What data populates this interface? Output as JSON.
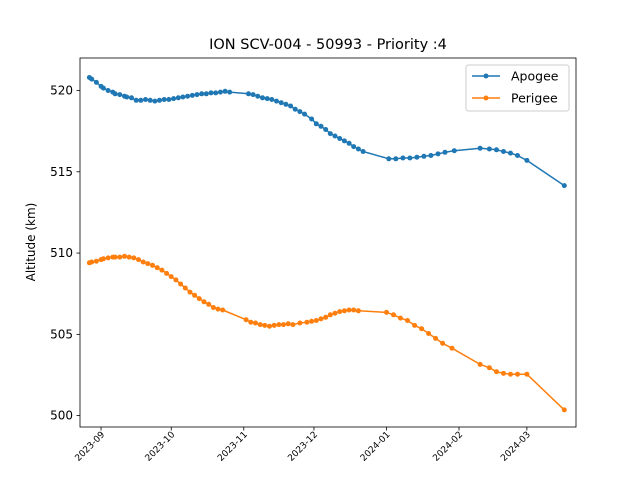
{
  "chart_data": {
    "type": "line",
    "title": "ION SCV-004 - 50993 - Priority :4",
    "xlabel": "",
    "ylabel": "Altitude (km)",
    "xlim": [
      "2023-08-23",
      "2024-03-22"
    ],
    "ylim": [
      499.3,
      522.0
    ],
    "x_ticks": [
      "2023-09",
      "2023-10",
      "2023-11",
      "2023-12",
      "2024-01",
      "2024-02",
      "2024-03"
    ],
    "y_ticks": [
      500,
      505,
      510,
      515,
      520
    ],
    "grid": false,
    "legend_position": "top-right",
    "series": [
      {
        "name": "Apogee",
        "color": "#1f77b4",
        "marker": "circle",
        "points": [
          [
            "2023-08-27",
            520.8
          ],
          [
            "2023-08-28",
            520.7
          ],
          [
            "2023-08-30",
            520.5
          ],
          [
            "2023-09-01",
            520.25
          ],
          [
            "2023-09-02",
            520.15
          ],
          [
            "2023-09-04",
            520.0
          ],
          [
            "2023-09-06",
            519.9
          ],
          [
            "2023-09-07",
            519.8
          ],
          [
            "2023-09-09",
            519.75
          ],
          [
            "2023-09-11",
            519.65
          ],
          [
            "2023-09-12",
            519.6
          ],
          [
            "2023-09-14",
            519.55
          ],
          [
            "2023-09-16",
            519.4
          ],
          [
            "2023-09-18",
            519.4
          ],
          [
            "2023-09-20",
            519.45
          ],
          [
            "2023-09-22",
            519.4
          ],
          [
            "2023-09-24",
            519.35
          ],
          [
            "2023-09-26",
            519.4
          ],
          [
            "2023-09-28",
            519.45
          ],
          [
            "2023-09-30",
            519.45
          ],
          [
            "2023-10-02",
            519.5
          ],
          [
            "2023-10-04",
            519.55
          ],
          [
            "2023-10-06",
            519.6
          ],
          [
            "2023-10-08",
            519.65
          ],
          [
            "2023-10-10",
            519.7
          ],
          [
            "2023-10-12",
            519.75
          ],
          [
            "2023-10-14",
            519.8
          ],
          [
            "2023-10-16",
            519.8
          ],
          [
            "2023-10-18",
            519.85
          ],
          [
            "2023-10-20",
            519.85
          ],
          [
            "2023-10-22",
            519.9
          ],
          [
            "2023-10-24",
            519.95
          ],
          [
            "2023-10-26",
            519.9
          ],
          [
            "2023-11-03",
            519.8
          ],
          [
            "2023-11-05",
            519.75
          ],
          [
            "2023-11-07",
            519.65
          ],
          [
            "2023-11-09",
            519.55
          ],
          [
            "2023-11-11",
            519.5
          ],
          [
            "2023-11-13",
            519.45
          ],
          [
            "2023-11-15",
            519.35
          ],
          [
            "2023-11-17",
            519.25
          ],
          [
            "2023-11-19",
            519.15
          ],
          [
            "2023-11-21",
            519.05
          ],
          [
            "2023-11-23",
            518.85
          ],
          [
            "2023-11-25",
            518.7
          ],
          [
            "2023-11-27",
            518.55
          ],
          [
            "2023-11-30",
            518.25
          ],
          [
            "2023-12-02",
            517.95
          ],
          [
            "2023-12-04",
            517.8
          ],
          [
            "2023-12-06",
            517.6
          ],
          [
            "2023-12-08",
            517.35
          ],
          [
            "2023-12-10",
            517.2
          ],
          [
            "2023-12-12",
            517.05
          ],
          [
            "2023-12-14",
            516.9
          ],
          [
            "2023-12-16",
            516.75
          ],
          [
            "2023-12-18",
            516.55
          ],
          [
            "2023-12-20",
            516.4
          ],
          [
            "2023-12-22",
            516.25
          ],
          [
            "2024-01-02",
            515.8
          ],
          [
            "2024-01-05",
            515.8
          ],
          [
            "2024-01-08",
            515.85
          ],
          [
            "2024-01-11",
            515.85
          ],
          [
            "2024-01-14",
            515.9
          ],
          [
            "2024-01-17",
            515.95
          ],
          [
            "2024-01-20",
            516.0
          ],
          [
            "2024-01-23",
            516.1
          ],
          [
            "2024-01-26",
            516.2
          ],
          [
            "2024-01-30",
            516.3
          ],
          [
            "2024-02-10",
            516.45
          ],
          [
            "2024-02-14",
            516.4
          ],
          [
            "2024-02-17",
            516.35
          ],
          [
            "2024-02-20",
            516.25
          ],
          [
            "2024-02-23",
            516.15
          ],
          [
            "2024-02-26",
            516.0
          ],
          [
            "2024-03-01",
            515.7
          ],
          [
            "2024-03-17",
            514.15
          ]
        ]
      },
      {
        "name": "Perigee",
        "color": "#ff7f0e",
        "marker": "circle",
        "points": [
          [
            "2023-08-27",
            509.4
          ],
          [
            "2023-08-28",
            509.45
          ],
          [
            "2023-08-30",
            509.5
          ],
          [
            "2023-09-01",
            509.6
          ],
          [
            "2023-09-02",
            509.65
          ],
          [
            "2023-09-04",
            509.7
          ],
          [
            "2023-09-06",
            509.75
          ],
          [
            "2023-09-07",
            509.75
          ],
          [
            "2023-09-09",
            509.75
          ],
          [
            "2023-09-11",
            509.8
          ],
          [
            "2023-09-13",
            509.75
          ],
          [
            "2023-09-15",
            509.7
          ],
          [
            "2023-09-17",
            509.6
          ],
          [
            "2023-09-19",
            509.45
          ],
          [
            "2023-09-21",
            509.35
          ],
          [
            "2023-09-23",
            509.25
          ],
          [
            "2023-09-25",
            509.1
          ],
          [
            "2023-09-27",
            508.95
          ],
          [
            "2023-09-29",
            508.75
          ],
          [
            "2023-10-01",
            508.55
          ],
          [
            "2023-10-03",
            508.35
          ],
          [
            "2023-10-05",
            508.1
          ],
          [
            "2023-10-07",
            507.85
          ],
          [
            "2023-10-09",
            507.6
          ],
          [
            "2023-10-11",
            507.4
          ],
          [
            "2023-10-13",
            507.2
          ],
          [
            "2023-10-15",
            507.0
          ],
          [
            "2023-10-17",
            506.85
          ],
          [
            "2023-10-19",
            506.65
          ],
          [
            "2023-10-21",
            506.55
          ],
          [
            "2023-10-23",
            506.5
          ],
          [
            "2023-11-02",
            505.9
          ],
          [
            "2023-11-04",
            505.75
          ],
          [
            "2023-11-06",
            505.7
          ],
          [
            "2023-11-08",
            505.6
          ],
          [
            "2023-11-10",
            505.55
          ],
          [
            "2023-11-12",
            505.5
          ],
          [
            "2023-11-14",
            505.55
          ],
          [
            "2023-11-16",
            505.6
          ],
          [
            "2023-11-18",
            505.6
          ],
          [
            "2023-11-20",
            505.65
          ],
          [
            "2023-11-22",
            505.6
          ],
          [
            "2023-11-25",
            505.7
          ],
          [
            "2023-11-28",
            505.75
          ],
          [
            "2023-11-30",
            505.8
          ],
          [
            "2023-12-02",
            505.85
          ],
          [
            "2023-12-04",
            505.95
          ],
          [
            "2023-12-06",
            506.05
          ],
          [
            "2023-12-08",
            506.2
          ],
          [
            "2023-12-10",
            506.3
          ],
          [
            "2023-12-12",
            506.4
          ],
          [
            "2023-12-14",
            506.45
          ],
          [
            "2023-12-16",
            506.5
          ],
          [
            "2023-12-18",
            506.5
          ],
          [
            "2023-12-20",
            506.45
          ],
          [
            "2024-01-01",
            506.35
          ],
          [
            "2024-01-04",
            506.2
          ],
          [
            "2024-01-07",
            506.0
          ],
          [
            "2024-01-10",
            505.85
          ],
          [
            "2024-01-13",
            505.55
          ],
          [
            "2024-01-16",
            505.35
          ],
          [
            "2024-01-19",
            505.05
          ],
          [
            "2024-01-22",
            504.75
          ],
          [
            "2024-01-25",
            504.45
          ],
          [
            "2024-01-29",
            504.15
          ],
          [
            "2024-02-10",
            503.15
          ],
          [
            "2024-02-14",
            502.95
          ],
          [
            "2024-02-17",
            502.7
          ],
          [
            "2024-02-20",
            502.6
          ],
          [
            "2024-02-23",
            502.55
          ],
          [
            "2024-02-26",
            502.55
          ],
          [
            "2024-03-01",
            502.55
          ],
          [
            "2024-03-17",
            500.35
          ]
        ]
      }
    ]
  }
}
